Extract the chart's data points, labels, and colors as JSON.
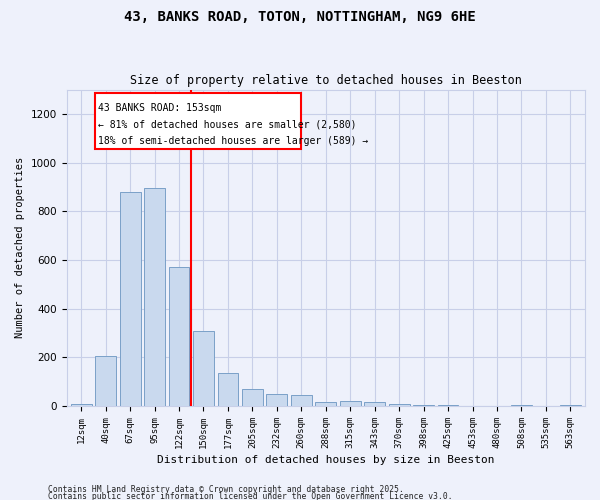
{
  "title1": "43, BANKS ROAD, TOTON, NOTTINGHAM, NG9 6HE",
  "title2": "Size of property relative to detached houses in Beeston",
  "xlabel": "Distribution of detached houses by size in Beeston",
  "ylabel": "Number of detached properties",
  "categories": [
    "12sqm",
    "40sqm",
    "67sqm",
    "95sqm",
    "122sqm",
    "150sqm",
    "177sqm",
    "205sqm",
    "232sqm",
    "260sqm",
    "288sqm",
    "315sqm",
    "343sqm",
    "370sqm",
    "398sqm",
    "425sqm",
    "453sqm",
    "480sqm",
    "508sqm",
    "535sqm",
    "563sqm"
  ],
  "values": [
    10,
    205,
    880,
    895,
    570,
    310,
    135,
    72,
    50,
    45,
    18,
    20,
    18,
    10,
    5,
    4,
    1,
    0,
    3,
    0,
    5
  ],
  "bar_color": "#c9d9ee",
  "bar_edge_color": "#7aa0c8",
  "vline_label": "43 BANKS ROAD: 153sqm",
  "annotation_line1": "← 81% of detached houses are smaller (2,580)",
  "annotation_line2": "18% of semi-detached houses are larger (589) →",
  "ylim": [
    0,
    1300
  ],
  "yticks": [
    0,
    200,
    400,
    600,
    800,
    1000,
    1200
  ],
  "footer1": "Contains HM Land Registry data © Crown copyright and database right 2025.",
  "footer2": "Contains public sector information licensed under the Open Government Licence v3.0.",
  "bg_color": "#eef1fb",
  "grid_color": "#c8cfe8",
  "vline_pos": 4.5
}
